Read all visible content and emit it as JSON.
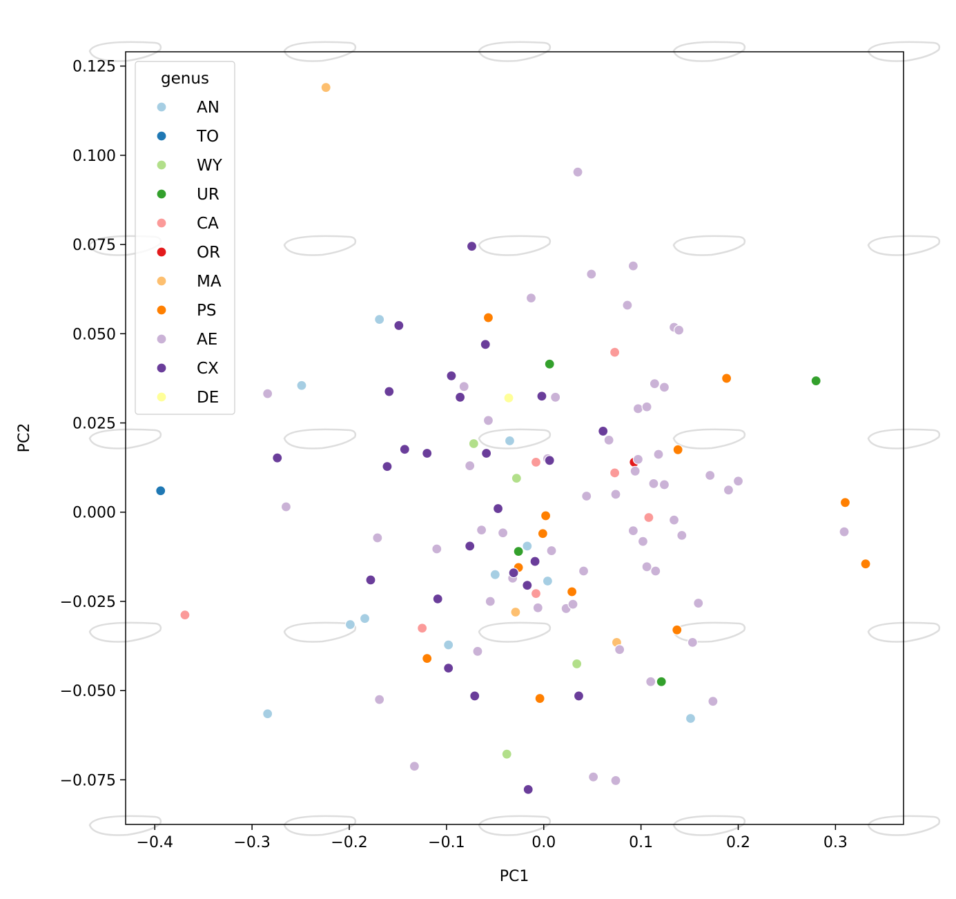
{
  "chart_data": {
    "type": "scatter",
    "xlabel": "PC1",
    "ylabel": "PC2",
    "xlim": [
      -0.43,
      0.37
    ],
    "ylim": [
      -0.0875,
      0.129
    ],
    "xticks": [
      -0.4,
      -0.3,
      -0.2,
      -0.1,
      0.0,
      0.1,
      0.2,
      0.3
    ],
    "xtick_labels": [
      "−0.4",
      "−0.3",
      "−0.2",
      "−0.1",
      "0.0",
      "0.1",
      "0.2",
      "0.3"
    ],
    "yticks": [
      0.125,
      0.1,
      0.075,
      0.05,
      0.025,
      0.0,
      -0.025,
      -0.05,
      -0.075
    ],
    "ytick_labels": [
      "0.125",
      "0.100",
      "0.075",
      "0.050",
      "0.025",
      "0.000",
      "−0.025",
      "−0.050",
      "−0.075"
    ],
    "grid": false,
    "legend": {
      "title": "genus",
      "placement": "upper-left"
    },
    "background_outlines": "faint grey leaf-shaped outlines repeated in a 5x5 grid",
    "series": [
      {
        "name": "AN",
        "color": "#a6cee3",
        "points": [
          [
            -0.169,
            0.054
          ],
          [
            -0.249,
            0.0355
          ],
          [
            -0.035,
            0.02
          ],
          [
            -0.017,
            -0.0095
          ],
          [
            -0.05,
            -0.0175
          ],
          [
            0.004,
            -0.0193
          ],
          [
            -0.199,
            -0.0315
          ],
          [
            -0.184,
            -0.0298
          ],
          [
            -0.098,
            -0.0372
          ],
          [
            -0.284,
            -0.0565
          ],
          [
            0.151,
            -0.0578
          ]
        ]
      },
      {
        "name": "TO",
        "color": "#1f78b4",
        "points": [
          [
            -0.394,
            0.006
          ]
        ]
      },
      {
        "name": "WY",
        "color": "#b2df8a",
        "points": [
          [
            -0.072,
            0.0192
          ],
          [
            -0.028,
            0.0095
          ],
          [
            0.034,
            -0.0425
          ],
          [
            -0.038,
            -0.0678
          ]
        ]
      },
      {
        "name": "UR",
        "color": "#33a02c",
        "points": [
          [
            0.006,
            0.0415
          ],
          [
            0.28,
            0.0368
          ],
          [
            -0.026,
            -0.011
          ],
          [
            0.121,
            -0.0475
          ]
        ]
      },
      {
        "name": "CA",
        "color": "#fb9a99",
        "points": [
          [
            0.073,
            0.0448
          ],
          [
            -0.008,
            0.014
          ],
          [
            0.073,
            0.011
          ],
          [
            0.108,
            -0.0015
          ],
          [
            -0.008,
            -0.0228
          ],
          [
            -0.125,
            -0.0325
          ],
          [
            -0.369,
            -0.0288
          ]
        ]
      },
      {
        "name": "OR",
        "color": "#e31a1c",
        "points": [
          [
            0.093,
            0.014
          ]
        ]
      },
      {
        "name": "MA",
        "color": "#fdbf6f",
        "points": [
          [
            -0.224,
            0.119
          ],
          [
            -0.029,
            -0.028
          ],
          [
            0.075,
            -0.0365
          ]
        ]
      },
      {
        "name": "PS",
        "color": "#ff7f00",
        "points": [
          [
            -0.057,
            0.0545
          ],
          [
            0.188,
            0.0375
          ],
          [
            0.138,
            0.0175
          ],
          [
            0.002,
            -0.001
          ],
          [
            -0.001,
            -0.006
          ],
          [
            0.31,
            0.0027
          ],
          [
            0.331,
            -0.0145
          ],
          [
            -0.026,
            -0.0155
          ],
          [
            0.029,
            -0.0223
          ],
          [
            0.137,
            -0.033
          ],
          [
            -0.12,
            -0.041
          ],
          [
            -0.004,
            -0.0522
          ]
        ]
      },
      {
        "name": "AE",
        "color": "#cab2d6",
        "points": [
          [
            0.035,
            0.0953
          ],
          [
            0.092,
            0.069
          ],
          [
            0.049,
            0.0667
          ],
          [
            -0.013,
            0.06
          ],
          [
            0.086,
            0.058
          ],
          [
            0.134,
            0.0518
          ],
          [
            0.139,
            0.051
          ],
          [
            -0.284,
            0.0332
          ],
          [
            -0.082,
            0.0352
          ],
          [
            0.012,
            0.0322
          ],
          [
            0.114,
            0.036
          ],
          [
            0.124,
            0.035
          ],
          [
            0.097,
            0.029
          ],
          [
            0.106,
            0.0295
          ],
          [
            -0.057,
            0.0257
          ],
          [
            0.067,
            0.0202
          ],
          [
            0.004,
            0.015
          ],
          [
            0.097,
            0.0148
          ],
          [
            0.118,
            0.0162
          ],
          [
            -0.076,
            0.013
          ],
          [
            0.094,
            0.0115
          ],
          [
            0.171,
            0.0103
          ],
          [
            0.2,
            0.0087
          ],
          [
            0.113,
            0.008
          ],
          [
            0.124,
            0.0077
          ],
          [
            0.19,
            0.0062
          ],
          [
            0.074,
            0.005
          ],
          [
            0.044,
            0.0045
          ],
          [
            -0.265,
            0.0015
          ],
          [
            -0.064,
            -0.005
          ],
          [
            -0.042,
            -0.0058
          ],
          [
            0.092,
            -0.0052
          ],
          [
            0.134,
            -0.0022
          ],
          [
            0.142,
            -0.0065
          ],
          [
            -0.171,
            -0.0072
          ],
          [
            0.102,
            -0.0082
          ],
          [
            0.309,
            -0.0055
          ],
          [
            -0.11,
            -0.0103
          ],
          [
            0.008,
            -0.0108
          ],
          [
            0.106,
            -0.0153
          ],
          [
            0.115,
            -0.0165
          ],
          [
            0.041,
            -0.0165
          ],
          [
            -0.032,
            -0.0185
          ],
          [
            -0.055,
            -0.025
          ],
          [
            -0.006,
            -0.0268
          ],
          [
            0.023,
            -0.027
          ],
          [
            0.03,
            -0.0258
          ],
          [
            0.159,
            -0.0255
          ],
          [
            0.078,
            -0.0385
          ],
          [
            0.153,
            -0.0365
          ],
          [
            -0.068,
            -0.039
          ],
          [
            0.11,
            -0.0475
          ],
          [
            -0.169,
            -0.0525
          ],
          [
            0.174,
            -0.053
          ],
          [
            -0.133,
            -0.0712
          ],
          [
            0.051,
            -0.0742
          ],
          [
            0.074,
            -0.0752
          ]
        ]
      },
      {
        "name": "CX",
        "color": "#6a3d9a",
        "points": [
          [
            -0.074,
            0.0745
          ],
          [
            -0.149,
            0.0523
          ],
          [
            -0.06,
            0.047
          ],
          [
            -0.095,
            0.0382
          ],
          [
            -0.159,
            0.0338
          ],
          [
            -0.086,
            0.0322
          ],
          [
            -0.002,
            0.0325
          ],
          [
            0.061,
            0.0227
          ],
          [
            -0.143,
            0.0176
          ],
          [
            -0.12,
            0.0165
          ],
          [
            -0.059,
            0.0165
          ],
          [
            0.006,
            0.0145
          ],
          [
            -0.274,
            0.0152
          ],
          [
            -0.161,
            0.0128
          ],
          [
            -0.047,
            0.001
          ],
          [
            -0.076,
            -0.0095
          ],
          [
            -0.009,
            -0.0138
          ],
          [
            -0.031,
            -0.017
          ],
          [
            -0.017,
            -0.0205
          ],
          [
            -0.178,
            -0.019
          ],
          [
            -0.109,
            -0.0243
          ],
          [
            -0.098,
            -0.0437
          ],
          [
            -0.071,
            -0.0515
          ],
          [
            0.036,
            -0.0515
          ],
          [
            -0.016,
            -0.0777
          ]
        ]
      },
      {
        "name": "DE",
        "color": "#ffff99",
        "points": [
          [
            -0.036,
            0.032
          ]
        ]
      }
    ]
  }
}
